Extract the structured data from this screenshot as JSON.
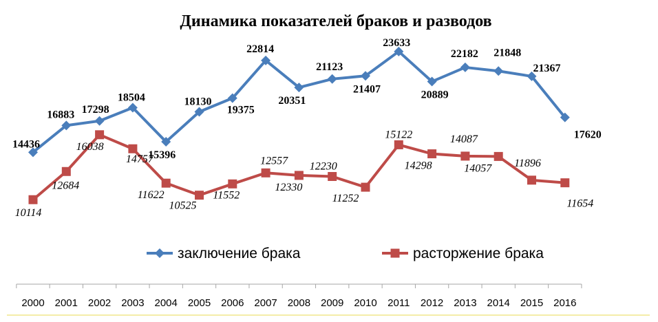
{
  "chart_data": {
    "type": "line",
    "title": "Динамика показателей браков и разводов",
    "xlabel": "",
    "ylabel": "",
    "grid": false,
    "legend": "bottom",
    "x": [
      "2000",
      "2001",
      "2002",
      "2003",
      "2004",
      "2005",
      "2006",
      "2007",
      "2008",
      "2009",
      "2010",
      "2011",
      "2012",
      "2013",
      "2014",
      "2015",
      "2016"
    ],
    "series": [
      {
        "name": "заключение брака",
        "color": "#4a7ebb",
        "marker": "diamond",
        "label_style": "bold",
        "values": [
          14436,
          16883,
          17298,
          18504,
          15396,
          18130,
          19375,
          22814,
          20351,
          21123,
          21407,
          23633,
          20889,
          22182,
          21848,
          21367,
          17620
        ],
        "labels": [
          "14436",
          "16883",
          "17298",
          "18504",
          "15396",
          "18130",
          "19375",
          "22814",
          "20351",
          "21123",
          "21407",
          "23633",
          "20889",
          "22182",
          "21848",
          "21367",
          "17620"
        ]
      },
      {
        "name": "расторжение брака",
        "color": "#be4b48",
        "marker": "square",
        "label_style": "italic",
        "values": [
          10114,
          12684,
          16038,
          14757,
          11622,
          10525,
          11552,
          12557,
          12330,
          12230,
          11252,
          15122,
          14298,
          14087,
          14057,
          11896,
          11654
        ],
        "labels": [
          "10114",
          "12684",
          "16038",
          "14757",
          "11622",
          "10525",
          "11552",
          "12557",
          "12330",
          "12230",
          "11252",
          "15122",
          "14298",
          "14087",
          "14057",
          "11896",
          "11654"
        ]
      }
    ]
  }
}
